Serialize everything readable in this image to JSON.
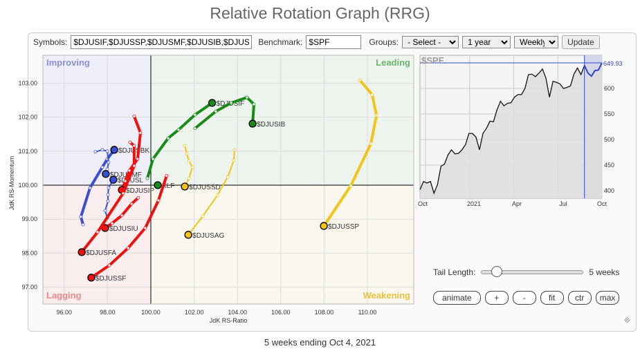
{
  "title": "Relative Rotation Graph (RRG)",
  "toolbar": {
    "symbols_label": "Symbols:",
    "symbols_value": "$DJUSIF,$DJUSSP,$DJUSMF,$DJUSIB,$DJUSFA,",
    "benchmark_label": "Benchmark:",
    "benchmark_value": "$SPF",
    "groups_label": "Groups:",
    "groups_value": "- Select -",
    "period_value": "1 year",
    "interval_value": "Weekly",
    "update_label": "Update"
  },
  "quadrants": {
    "improving": "Improving",
    "leading": "Leading",
    "lagging": "Lagging",
    "weakening": "Weakening"
  },
  "colors": {
    "improving": "#8a90d8",
    "leading": "#6cb46c",
    "lagging": "#e98a8a",
    "weakening": "#e8c23a"
  },
  "chart_data": [
    {
      "type": "scatter",
      "title": "",
      "xlabel": "JdK RS-Ratio",
      "ylabel": "JdK RS-Momentum",
      "xlim": [
        95,
        111.5
      ],
      "ylim": [
        96.5,
        103.8
      ],
      "xticks": [
        "96.00",
        "98.00",
        "100.00",
        "102.00",
        "104.00",
        "106.00",
        "108.00",
        "110.00"
      ],
      "yticks": [
        "97.00",
        "98.00",
        "99.00",
        "100.00",
        "101.00",
        "102.00",
        "103.00"
      ],
      "series": [
        {
          "name": "$DJUSIF",
          "color": "#1a8a1a",
          "tail": [
            [
              99.84,
              100.2
            ],
            [
              100.1,
              100.77
            ],
            [
              100.8,
              101.38
            ],
            [
              101.28,
              101.63
            ],
            [
              102.04,
              102.07
            ],
            [
              102.83,
              102.42
            ]
          ]
        },
        {
          "name": "$DJUSIB",
          "color": "#1a8a1a",
          "tail": [
            [
              102.04,
              101.67
            ],
            [
              103.0,
              102.17
            ],
            [
              103.71,
              102.42
            ],
            [
              104.44,
              102.58
            ],
            [
              104.76,
              102.38
            ],
            [
              104.7,
              101.81
            ]
          ]
        },
        {
          "name": "XLF",
          "color": "#1a8a1a",
          "tail": [
            [
              100.32,
              100.0
            ]
          ]
        },
        {
          "name": "$DJUSSD",
          "color": "#f0c419",
          "tail": [
            [
              101.57,
              101.16
            ],
            [
              101.66,
              100.92
            ],
            [
              101.76,
              100.71
            ],
            [
              101.92,
              100.53
            ],
            [
              101.76,
              100.2
            ],
            [
              101.57,
              99.96
            ]
          ]
        },
        {
          "name": "$DJUSAG",
          "color": "#f0c419",
          "tail": [
            [
              103.87,
              101.04
            ],
            [
              103.83,
              100.73
            ],
            [
              103.55,
              100.24
            ],
            [
              103.07,
              99.7
            ],
            [
              102.4,
              99.09
            ],
            [
              101.73,
              98.54
            ]
          ]
        },
        {
          "name": "$DJUSSP",
          "color": "#f0c419",
          "tail": [
            [
              109.65,
              103.09
            ],
            [
              110.22,
              102.66
            ],
            [
              110.42,
              102.05
            ],
            [
              110.16,
              101.22
            ],
            [
              109.23,
              99.98
            ],
            [
              107.99,
              98.8
            ]
          ]
        },
        {
          "name": "$DJUSBK",
          "color": "#3a50d0",
          "tail": [
            [
              96.87,
              98.84
            ],
            [
              96.77,
              99.07
            ],
            [
              97.19,
              99.92
            ],
            [
              97.76,
              100.53
            ],
            [
              97.99,
              100.77
            ],
            [
              98.31,
              101.04
            ]
          ]
        },
        {
          "name": "$DJUSMF",
          "color": "#3a50d0",
          "tail": [
            [
              97.44,
              100.98
            ],
            [
              97.76,
              101.04
            ],
            [
              97.99,
              101.0
            ],
            [
              98.05,
              100.67
            ],
            [
              97.99,
              100.47
            ],
            [
              97.92,
              100.33
            ]
          ]
        },
        {
          "name": "$DJUSL",
          "color": "#3a50d0",
          "tail": [
            [
              97.99,
              99.04
            ],
            [
              97.89,
              99.25
            ],
            [
              98.02,
              99.53
            ],
            [
              98.02,
              99.72
            ],
            [
              98.05,
              99.92
            ],
            [
              98.27,
              100.16
            ]
          ]
        },
        {
          "name": "$DJUSIP",
          "color": "#ee1111",
          "tail": [
            [
              99.23,
              102.03
            ],
            [
              99.52,
              101.54
            ],
            [
              99.39,
              100.77
            ],
            [
              99.01,
              100.43
            ],
            [
              98.82,
              100.12
            ],
            [
              98.66,
              99.86
            ]
          ]
        },
        {
          "name": "$DJUSIU",
          "color": "#ee1111",
          "tail": [
            [
              99.42,
              99.63
            ],
            [
              99.11,
              99.45
            ],
            [
              98.66,
              99.11
            ],
            [
              98.21,
              98.88
            ],
            [
              97.89,
              98.74
            ]
          ]
        },
        {
          "name": "$DJUSFA",
          "color": "#ee1111",
          "tail": [
            [
              99.04,
              101.26
            ],
            [
              99.23,
              101.16
            ],
            [
              99.23,
              100.57
            ],
            [
              98.72,
              99.76
            ],
            [
              97.54,
              98.62
            ],
            [
              96.81,
              98.03
            ]
          ]
        },
        {
          "name": "$DJUSSF",
          "color": "#ee1111",
          "tail": [
            [
              100.73,
              100.28
            ],
            [
              100.35,
              99.55
            ],
            [
              99.74,
              98.74
            ],
            [
              98.95,
              98.15
            ],
            [
              98.08,
              97.64
            ],
            [
              97.25,
              97.28
            ]
          ]
        }
      ]
    },
    {
      "type": "line",
      "title": "$SPF",
      "last_value": "649.93",
      "ylim": [
        385,
        660
      ],
      "yticks": [
        "400",
        "450",
        "500",
        "550",
        "600"
      ],
      "xticks": [
        "Oct",
        "2021",
        "Apr",
        "Jul",
        "Oct"
      ],
      "highlight_weeks": 5,
      "values": [
        402,
        418,
        415,
        418,
        395,
        412,
        448,
        452,
        470,
        480,
        472,
        473,
        480,
        490,
        512,
        512,
        505,
        480,
        512,
        522,
        536,
        535,
        558,
        575,
        566,
        571,
        572,
        583,
        588,
        588,
        600,
        627,
        628,
        623,
        630,
        638,
        620,
        583,
        614,
        612,
        609,
        600,
        602,
        605,
        628,
        640,
        627,
        645,
        630,
        624,
        635,
        636,
        650
      ]
    }
  ],
  "tail": {
    "label": "Tail Length:",
    "value": "5 weeks",
    "weeks": 5
  },
  "buttons": {
    "animate": "animate",
    "plus": "+",
    "minus": "-",
    "fit": "fit",
    "ctr": "ctr",
    "max": "max"
  },
  "footer": "5 weeks ending Oct 4, 2021"
}
